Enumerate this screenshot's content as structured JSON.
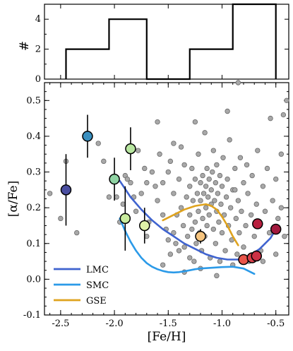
{
  "chart_data": [
    {
      "type": "histogram",
      "ylabel": "#",
      "ylim": [
        0,
        5
      ],
      "yticks": [
        0,
        2,
        4
      ],
      "bins": [
        {
          "x0": -2.45,
          "x1": -2.05,
          "count": 2
        },
        {
          "x0": -2.05,
          "x1": -1.7,
          "count": 4
        },
        {
          "x0": -1.7,
          "x1": -1.3,
          "count": 0
        },
        {
          "x0": -1.3,
          "x1": -0.9,
          "count": 2
        },
        {
          "x0": -0.9,
          "x1": -0.5,
          "count": 5
        }
      ]
    },
    {
      "type": "scatter",
      "xlabel": "[Fe/H]",
      "ylabel": "[α/Fe]",
      "xlim": [
        -2.65,
        -0.38
      ],
      "ylim": [
        -0.1,
        0.55
      ],
      "xticks": [
        -2.5,
        -2.0,
        -1.5,
        -1.0,
        -0.5
      ],
      "xtick_labels": [
        "-2.5",
        "-2.0",
        "-1.5",
        "-1.0",
        "-0.5"
      ],
      "yticks": [
        -0.1,
        0.0,
        0.1,
        0.2,
        0.3,
        0.4,
        0.5
      ],
      "ytick_labels": [
        "-0.1",
        "0.0",
        "0.1",
        "0.2",
        "0.3",
        "0.4",
        "0.5"
      ],
      "background_points": [
        [
          -2.6,
          0.24
        ],
        [
          -2.5,
          0.17
        ],
        [
          -2.45,
          0.33
        ],
        [
          -2.35,
          0.13
        ],
        [
          -2.15,
          0.38
        ],
        [
          -2.1,
          0.33
        ],
        [
          -2.05,
          0.23
        ],
        [
          -1.98,
          0.23
        ],
        [
          -1.95,
          0.16
        ],
        [
          -1.92,
          0.21
        ],
        [
          -1.9,
          0.29
        ],
        [
          -1.88,
          0.28
        ],
        [
          -1.85,
          0.27
        ],
        [
          -1.82,
          0.23
        ],
        [
          -1.8,
          0.19
        ],
        [
          -1.78,
          0.36
        ],
        [
          -1.75,
          0.24
        ],
        [
          -1.72,
          0.31
        ],
        [
          -1.7,
          0.27
        ],
        [
          -1.68,
          0.16
        ],
        [
          -1.65,
          0.3
        ],
        [
          -1.62,
          0.26
        ],
        [
          -1.6,
          0.22
        ],
        [
          -1.58,
          0.35
        ],
        [
          -1.55,
          0.18
        ],
        [
          -1.55,
          0.27
        ],
        [
          -1.52,
          0.14
        ],
        [
          -1.5,
          0.3
        ],
        [
          -1.5,
          0.11
        ],
        [
          -1.48,
          0.33
        ],
        [
          -1.48,
          0.07
        ],
        [
          -1.45,
          0.24
        ],
        [
          -1.45,
          0.13
        ],
        [
          -1.43,
          0.1
        ],
        [
          -1.42,
          0.18
        ],
        [
          -1.4,
          0.28
        ],
        [
          -1.4,
          0.08
        ],
        [
          -1.38,
          0.37
        ],
        [
          -1.38,
          0.2
        ],
        [
          -1.36,
          0.15
        ],
        [
          -1.35,
          0.32
        ],
        [
          -1.35,
          0.09
        ],
        [
          -1.33,
          0.23
        ],
        [
          -1.32,
          0.12
        ],
        [
          -1.3,
          0.26
        ],
        [
          -1.3,
          0.18
        ],
        [
          -1.3,
          0.06
        ],
        [
          -1.28,
          0.31
        ],
        [
          -1.28,
          0.14
        ],
        [
          -1.27,
          0.22
        ],
        [
          -1.26,
          0.05
        ],
        [
          -1.25,
          0.28
        ],
        [
          -1.25,
          0.16
        ],
        [
          -1.24,
          0.1
        ],
        [
          -1.23,
          0.24
        ],
        [
          -1.22,
          0.35
        ],
        [
          -1.22,
          0.19
        ],
        [
          -1.21,
          0.13
        ],
        [
          -1.2,
          0.27
        ],
        [
          -1.2,
          0.22
        ],
        [
          -1.19,
          0.08
        ],
        [
          -1.18,
          0.29
        ],
        [
          -1.18,
          0.17
        ],
        [
          -1.17,
          0.24
        ],
        [
          -1.16,
          0.41
        ],
        [
          -1.16,
          0.12
        ],
        [
          -1.15,
          0.26
        ],
        [
          -1.15,
          0.2
        ],
        [
          -1.14,
          0.31
        ],
        [
          -1.14,
          0.15
        ],
        [
          -1.13,
          0.23
        ],
        [
          -1.12,
          0.28
        ],
        [
          -1.12,
          0.18
        ],
        [
          -1.11,
          0.06
        ],
        [
          -1.1,
          0.25
        ],
        [
          -1.1,
          0.21
        ],
        [
          -1.09,
          0.3
        ],
        [
          -1.08,
          0.14
        ],
        [
          -1.08,
          0.36
        ],
        [
          -1.07,
          0.22
        ],
        [
          -1.06,
          0.27
        ],
        [
          -1.06,
          0.1
        ],
        [
          -1.05,
          0.19
        ],
        [
          -1.05,
          0.32
        ],
        [
          -1.04,
          0.24
        ],
        [
          -1.03,
          0.16
        ],
        [
          -1.02,
          0.29
        ],
        [
          -1.02,
          0.05
        ],
        [
          -1.01,
          0.21
        ],
        [
          -1.0,
          0.13
        ],
        [
          -1.0,
          0.26
        ],
        [
          -0.99,
          0.34
        ],
        [
          -0.98,
          0.18
        ],
        [
          -0.97,
          0.08
        ],
        [
          -0.96,
          0.23
        ],
        [
          -0.95,
          0.28
        ],
        [
          -0.94,
          0.15
        ],
        [
          -0.93,
          0.39
        ],
        [
          -0.92,
          0.2
        ],
        [
          -0.91,
          0.11
        ],
        [
          -0.9,
          0.25
        ],
        [
          -0.88,
          0.31
        ],
        [
          -0.87,
          0.17
        ],
        [
          -0.86,
          0.07
        ],
        [
          -0.85,
          0.22
        ],
        [
          -0.84,
          0.13
        ],
        [
          -0.83,
          0.34
        ],
        [
          -0.82,
          0.19
        ],
        [
          -0.8,
          0.27
        ],
        [
          -0.8,
          0.09
        ],
        [
          -0.78,
          0.15
        ],
        [
          -0.77,
          0.32
        ],
        [
          -0.76,
          0.24
        ],
        [
          -0.75,
          0.05
        ],
        [
          -0.73,
          0.18
        ],
        [
          -0.72,
          0.29
        ],
        [
          -0.7,
          0.12
        ],
        [
          -0.68,
          0.21
        ],
        [
          -0.67,
          0.36
        ],
        [
          -0.65,
          0.16
        ],
        [
          -0.64,
          0.08
        ],
        [
          -0.62,
          0.26
        ],
        [
          -0.6,
          0.19
        ],
        [
          -0.58,
          0.31
        ],
        [
          -0.56,
          0.13
        ],
        [
          -0.55,
          0.45
        ],
        [
          -0.53,
          0.22
        ],
        [
          -0.5,
          0.28
        ],
        [
          -0.48,
          0.17
        ],
        [
          -0.45,
          0.35
        ],
        [
          -0.43,
          0.46
        ],
        [
          -0.42,
          0.12
        ],
        [
          -0.4,
          0.5
        ],
        [
          -0.85,
          0.55
        ],
        [
          -0.95,
          0.47
        ],
        [
          -1.6,
          0.44
        ],
        [
          -1.45,
          0.38
        ],
        [
          -1.25,
          0.44
        ],
        [
          -1.7,
          0.12
        ],
        [
          -1.55,
          0.04
        ],
        [
          -1.35,
          0.02
        ],
        [
          -1.2,
          0.03
        ],
        [
          -1.05,
          0.01
        ],
        [
          -0.9,
          0.04
        ],
        [
          -0.88,
          0.25
        ],
        [
          -0.62,
          0.05
        ],
        [
          -0.5,
          0.07
        ],
        [
          -0.45,
          0.2
        ]
      ],
      "highlighted_points": [
        {
          "feh": -2.45,
          "afe": 0.25,
          "err": 0.1,
          "color": "#4a4ea0"
        },
        {
          "feh": -2.25,
          "afe": 0.4,
          "err": 0.06,
          "color": "#3a8fbf"
        },
        {
          "feh": -2.0,
          "afe": 0.28,
          "err": 0.06,
          "color": "#8fd3a3"
        },
        {
          "feh": -1.85,
          "afe": 0.365,
          "err": 0.06,
          "color": "#b8e6a0"
        },
        {
          "feh": -1.9,
          "afe": 0.17,
          "err": 0.09,
          "color": "#c9ec9e"
        },
        {
          "feh": -1.72,
          "afe": 0.15,
          "err": 0.05,
          "color": "#e0f2a8"
        },
        {
          "feh": -1.2,
          "afe": 0.12,
          "err": 0.02,
          "color": "#f6c47e"
        },
        {
          "feh": -0.8,
          "afe": 0.055,
          "err": 0.0,
          "color": "#e8554a"
        },
        {
          "feh": -0.72,
          "afe": 0.06,
          "err": 0.0,
          "color": "#d9404a"
        },
        {
          "feh": -0.68,
          "afe": 0.065,
          "err": 0.0,
          "color": "#cc3045"
        },
        {
          "feh": -0.67,
          "afe": 0.155,
          "err": 0.0,
          "color": "#b8203f"
        },
        {
          "feh": -0.5,
          "afe": 0.14,
          "err": 0.0,
          "color": "#a31a3e"
        }
      ],
      "series": [
        {
          "name": "LMC",
          "color": "#3f63cf",
          "x": [
            -1.95,
            -1.85,
            -1.75,
            -1.65,
            -1.55,
            -1.45,
            -1.35,
            -1.25,
            -1.15,
            -1.05,
            -0.95,
            -0.85,
            -0.75,
            -0.65,
            -0.55,
            -0.5
          ],
          "y": [
            0.275,
            0.23,
            0.195,
            0.165,
            0.14,
            0.12,
            0.1,
            0.085,
            0.07,
            0.06,
            0.055,
            0.055,
            0.065,
            0.085,
            0.115,
            0.14
          ]
        },
        {
          "name": "SMC",
          "color": "#2b9ae8",
          "x": [
            -1.95,
            -1.9,
            -1.85,
            -1.8,
            -1.75,
            -1.7,
            -1.65,
            -1.6,
            -1.55,
            -1.5,
            -1.45,
            -1.4,
            -1.35,
            -1.3,
            -1.25,
            -1.2,
            -1.1,
            -1.0,
            -0.9,
            -0.8,
            -0.7
          ],
          "y": [
            0.17,
            0.135,
            0.105,
            0.08,
            0.06,
            0.045,
            0.035,
            0.028,
            0.023,
            0.02,
            0.019,
            0.02,
            0.022,
            0.025,
            0.028,
            0.03,
            0.032,
            0.034,
            0.035,
            0.03,
            0.015
          ]
        },
        {
          "name": "GSE",
          "color": "#dfa31e",
          "x": [
            -1.55,
            -1.45,
            -1.35,
            -1.25,
            -1.15,
            -1.1,
            -1.05,
            -1.0,
            -0.95,
            -0.9,
            -0.85
          ],
          "y": [
            0.165,
            0.18,
            0.195,
            0.205,
            0.21,
            0.205,
            0.195,
            0.175,
            0.15,
            0.12,
            0.095
          ]
        }
      ],
      "legend": {
        "position": "lower-left",
        "entries": [
          "LMC",
          "SMC",
          "GSE"
        ]
      }
    }
  ]
}
